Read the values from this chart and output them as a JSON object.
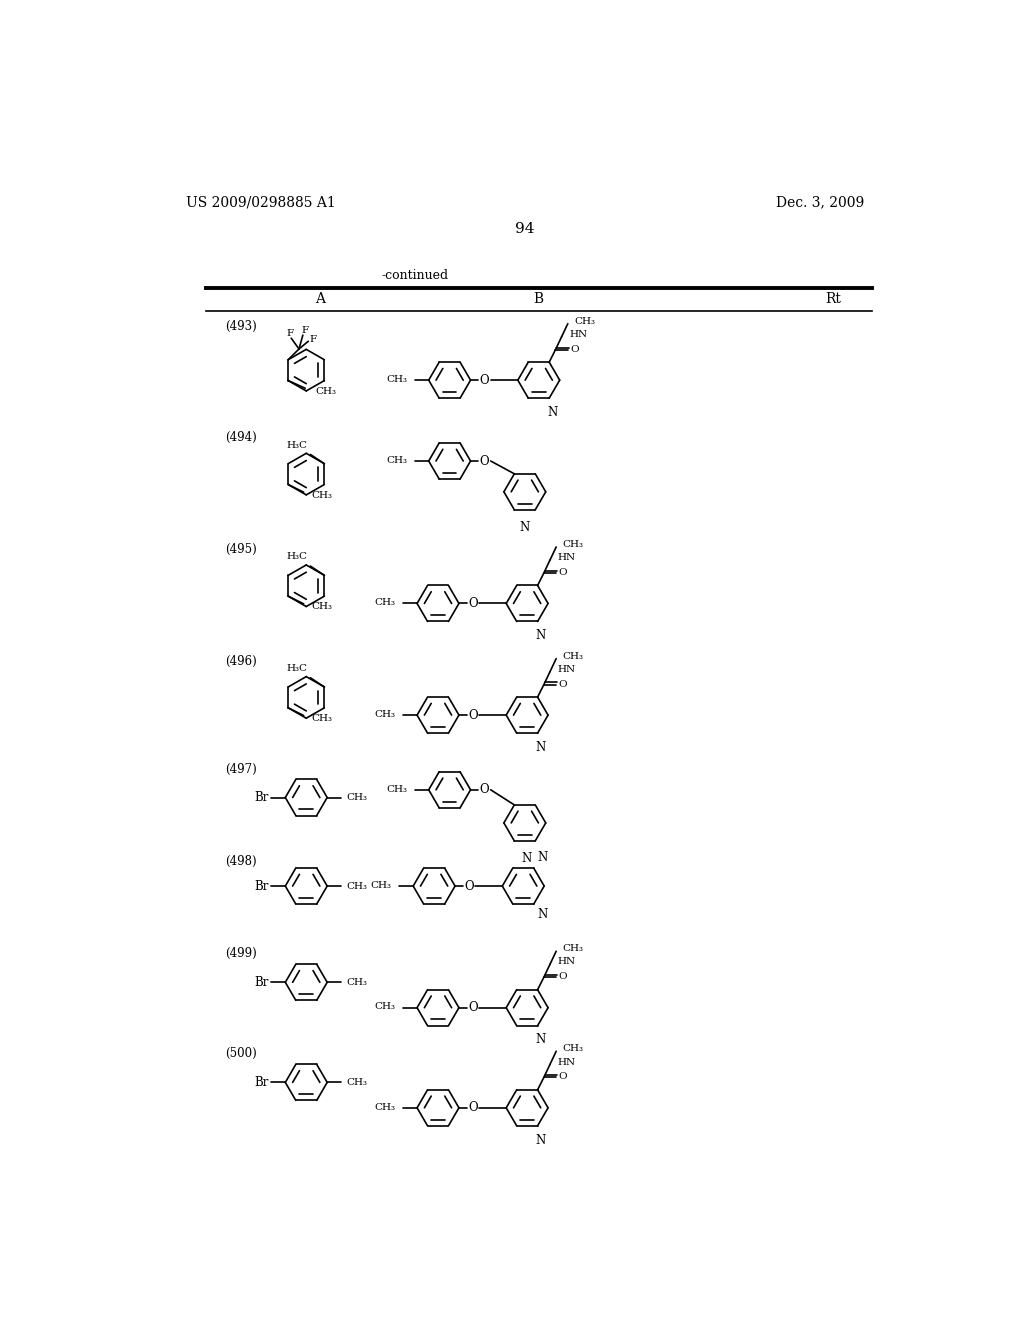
{
  "page_number": "94",
  "patent_number": "US 2009/0298885 A1",
  "date": "Dec. 3, 2009",
  "continued_text": "-continued",
  "col_A": "A",
  "col_B": "B",
  "col_Rt": "Rt",
  "compounds": [
    "(493)",
    "(494)",
    "(495)",
    "(496)",
    "(497)",
    "(498)",
    "(499)",
    "(500)"
  ],
  "background_color": "#ffffff",
  "text_color": "#000000"
}
